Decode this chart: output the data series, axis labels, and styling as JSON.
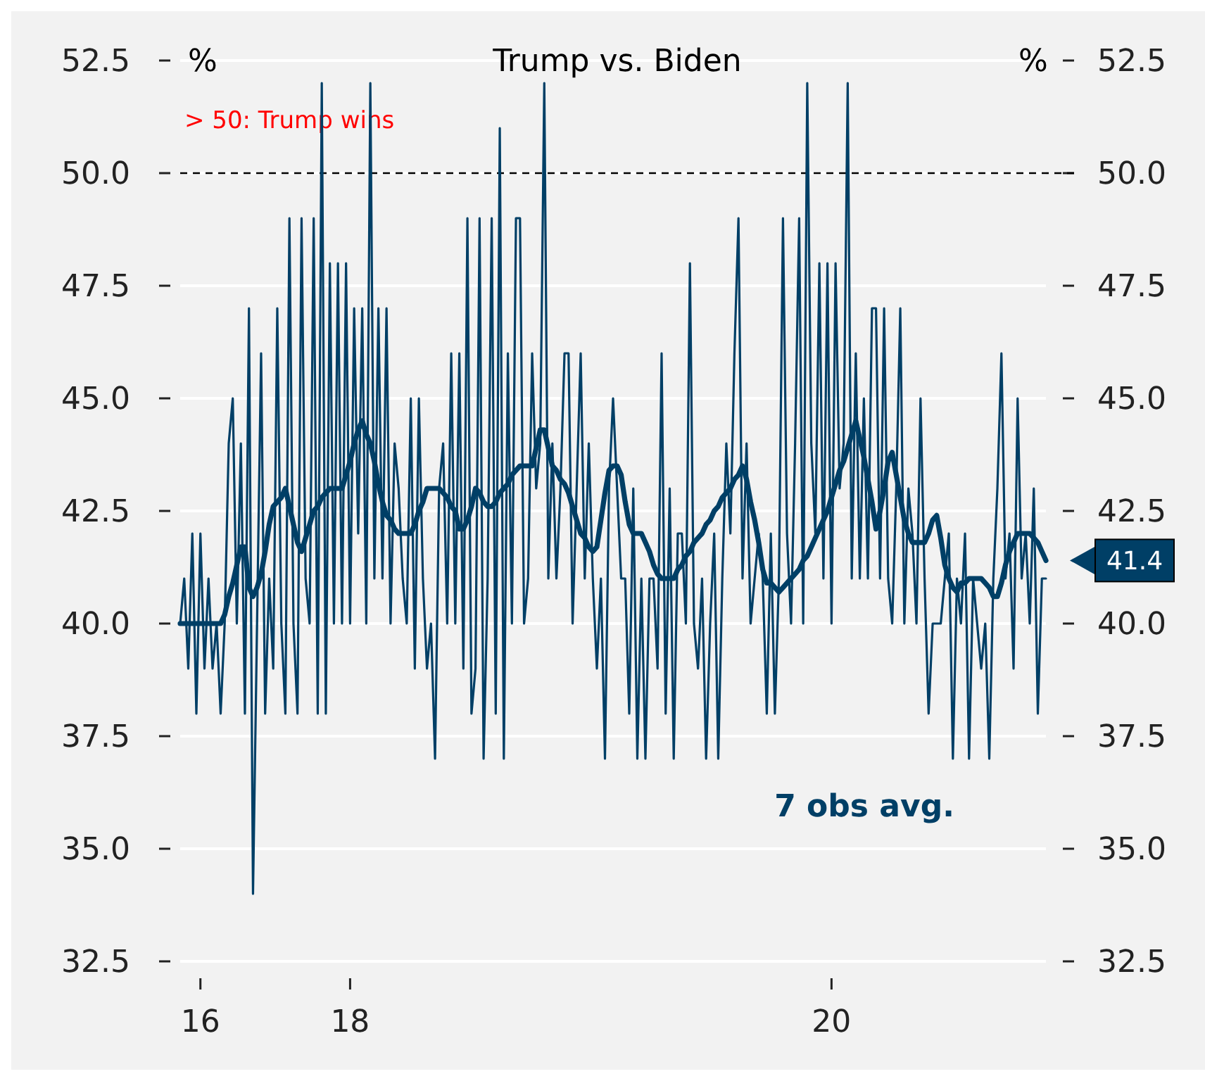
{
  "chart_data": {
    "type": "line",
    "title": "Trump vs. Biden",
    "ylabel": "%",
    "y2label": "%",
    "categories": [
      null,
      null,
      null,
      null,
      null,
      "16",
      null,
      null,
      null,
      null,
      null,
      null,
      null,
      null,
      null,
      null,
      null,
      null,
      null,
      null,
      null,
      null,
      null,
      null,
      null,
      null,
      null,
      null,
      null,
      null,
      null,
      null,
      null,
      null,
      null,
      null,
      null,
      null,
      null,
      null,
      null,
      null,
      "18",
      null,
      null,
      null,
      null,
      null,
      null,
      null,
      null,
      null,
      null,
      null,
      null,
      null,
      null,
      null,
      null,
      null,
      null,
      null,
      null,
      null,
      null,
      null,
      null,
      null,
      null,
      null,
      null,
      null,
      null,
      null,
      null,
      null,
      null,
      null,
      null,
      null,
      null,
      null,
      null,
      null,
      null,
      null,
      null,
      null,
      null,
      null,
      null,
      null,
      null,
      null,
      null,
      null,
      null,
      null,
      null,
      null,
      null,
      null,
      null,
      null,
      null,
      null,
      null,
      null,
      null,
      null,
      null,
      null,
      null,
      null,
      null,
      null,
      null,
      null,
      null,
      null,
      null,
      null,
      null,
      null,
      null,
      null,
      null,
      null,
      null,
      null,
      null,
      null,
      null,
      null,
      null,
      null,
      null,
      null,
      null,
      null,
      null,
      null,
      null,
      null,
      null,
      null,
      null,
      null,
      null,
      null,
      null,
      null,
      null,
      null,
      null,
      null,
      null,
      null,
      null,
      null,
      null,
      "20",
      null,
      null,
      null,
      null,
      null,
      null,
      null,
      null,
      null,
      null,
      null,
      null,
      null,
      null,
      null,
      null,
      null,
      null,
      null,
      null,
      null,
      null,
      null,
      null,
      null,
      null,
      null,
      null,
      null,
      null,
      null,
      null,
      null,
      null,
      null,
      null,
      null,
      null,
      null,
      null,
      null,
      null,
      null,
      null,
      null,
      null,
      null,
      null,
      null,
      null,
      null,
      null,
      null
    ],
    "ylim": [
      32.5,
      52.5
    ],
    "yticks": [
      {
        "value": 32.5,
        "label": "32.5"
      },
      {
        "value": 35,
        "label": "35.0"
      },
      {
        "value": 37.5,
        "label": "37.5"
      },
      {
        "value": 40,
        "label": "40.0"
      },
      {
        "value": 42.5,
        "label": "42.5"
      },
      {
        "value": 45,
        "label": "45.0"
      },
      {
        "value": 47.5,
        "label": "47.5"
      },
      {
        "value": 50,
        "label": "50.0"
      },
      {
        "value": 52.5,
        "label": "52.5"
      }
    ],
    "y2lim": [
      32.5,
      52.5
    ],
    "y2ticks": [
      {
        "value": 32.5,
        "label": "32.5"
      },
      {
        "value": 35,
        "label": "35.0"
      },
      {
        "value": 37.5,
        "label": "37.5"
      },
      {
        "value": 40,
        "label": "40.0"
      },
      {
        "value": 42.5,
        "label": "42.5"
      },
      {
        "value": 45,
        "label": "45.0"
      },
      {
        "value": 47.5,
        "label": "47.5"
      },
      {
        "value": 50,
        "label": "50.0"
      },
      {
        "value": 52.5,
        "label": "52.5"
      }
    ],
    "grid": "y",
    "marker": "none",
    "line_style": "solid",
    "ref_lines": [
      {
        "axis": "y",
        "value": 50,
        "label": "> 50: Trump wins",
        "color": "#000000",
        "line_style": "dashed"
      }
    ],
    "annotations": [
      "41.4"
    ],
    "series": [
      {
        "color": "#003f66",
        "values": [
          40,
          41,
          39,
          42,
          38,
          42,
          39,
          41,
          39,
          40,
          38,
          40,
          44,
          45,
          40,
          44,
          38,
          47,
          34,
          40,
          46,
          38,
          41,
          39,
          47,
          40,
          38,
          49,
          40,
          38,
          49,
          41,
          40,
          49,
          38,
          52,
          38,
          48,
          40,
          48,
          40,
          48,
          40,
          47,
          42,
          47,
          40,
          52,
          41,
          47,
          41,
          47,
          40,
          44,
          43,
          41,
          40,
          45,
          39,
          45,
          41,
          39,
          40,
          37,
          43,
          44,
          40,
          46,
          40,
          46,
          39,
          49,
          38,
          39,
          49,
          37,
          41,
          49,
          38,
          51,
          37,
          46,
          40,
          49,
          49,
          40,
          41,
          46,
          43,
          44,
          52,
          41,
          44,
          41,
          43,
          46,
          46,
          40,
          43,
          46,
          41,
          44,
          41,
          39,
          41,
          37,
          43,
          45,
          43,
          41,
          41,
          38,
          43,
          37,
          41,
          37,
          41,
          41,
          39,
          46,
          38,
          43,
          37,
          42,
          42,
          40,
          48,
          40,
          39,
          41,
          37,
          40,
          42,
          37,
          41,
          44,
          42,
          46,
          49,
          41,
          44,
          40,
          41,
          42,
          41,
          38,
          42,
          38,
          41,
          49,
          42,
          40,
          44,
          49,
          40,
          52,
          44,
          42,
          48,
          41,
          48,
          40,
          48,
          43,
          44,
          52,
          41,
          46,
          41,
          45,
          41,
          47,
          47,
          41,
          47,
          41,
          40,
          43,
          47,
          40,
          43,
          42,
          40,
          45,
          41,
          38,
          40,
          40,
          40,
          41,
          42,
          37,
          41,
          40,
          42,
          37,
          41,
          40,
          39,
          40,
          37,
          41,
          43,
          46,
          41,
          42,
          39,
          45,
          41,
          42,
          40,
          43,
          38,
          41,
          41
        ]
      },
      {
        "name": "7 obs avg.",
        "color": "#003f66",
        "values": [
          40,
          40,
          40,
          40,
          40,
          40,
          40,
          40,
          40,
          40,
          40,
          40.2,
          40.6,
          40.9,
          41.3,
          41.7,
          41.7,
          40.8,
          40.6,
          40.8,
          41.1,
          41.6,
          42.2,
          42.6,
          42.7,
          42.8,
          43,
          42.6,
          42.2,
          41.8,
          41.6,
          41.9,
          42.2,
          42.5,
          42.6,
          42.8,
          42.9,
          43,
          43,
          43,
          43,
          43.3,
          43.6,
          44,
          44.3,
          44.5,
          44.2,
          44,
          43.6,
          43.1,
          42.7,
          42.4,
          42.3,
          42.1,
          42,
          42,
          42,
          42,
          42.2,
          42.5,
          42.7,
          43,
          43,
          43,
          43,
          42.9,
          42.8,
          42.6,
          42.5,
          42.1,
          42.1,
          42.3,
          42.6,
          43,
          42.9,
          42.7,
          42.6,
          42.6,
          42.7,
          42.9,
          43,
          43.1,
          43.3,
          43.4,
          43.5,
          43.5,
          43.5,
          43.5,
          43.9,
          44.3,
          44.3,
          43.9,
          43.5,
          43.4,
          43.2,
          43.1,
          42.9,
          42.6,
          42.3,
          42,
          41.9,
          41.7,
          41.6,
          41.7,
          42.3,
          42.9,
          43.4,
          43.5,
          43.5,
          43.3,
          42.7,
          42.2,
          42,
          42,
          42,
          41.8,
          41.6,
          41.3,
          41.1,
          41,
          41,
          41,
          41,
          41.2,
          41.3,
          41.5,
          41.6,
          41.8,
          41.9,
          42,
          42.2,
          42.3,
          42.5,
          42.6,
          42.8,
          42.9,
          43,
          43.2,
          43.3,
          43.5,
          43.2,
          42.7,
          42.3,
          41.8,
          41.2,
          40.9,
          40.9,
          40.8,
          40.7,
          40.8,
          40.9,
          41,
          41.1,
          41.2,
          41.4,
          41.5,
          41.7,
          41.9,
          42.1,
          42.3,
          42.5,
          42.8,
          43.1,
          43.4,
          43.6,
          43.9,
          44.2,
          44.5,
          44.1,
          43.7,
          43.2,
          42.7,
          42.1,
          42.5,
          43,
          43.6,
          43.8,
          43.3,
          42.8,
          42.3,
          42,
          41.8,
          41.8,
          41.8,
          41.8,
          42,
          42.3,
          42.4,
          41.9,
          41.3,
          41,
          40.8,
          40.7,
          40.9,
          40.9,
          41,
          41,
          41,
          41,
          40.9,
          40.8,
          40.6,
          40.6,
          40.9,
          41.3,
          41.6,
          41.8,
          42,
          42,
          42,
          42,
          41.9,
          41.8,
          41.6,
          41.4
        ]
      }
    ]
  }
}
